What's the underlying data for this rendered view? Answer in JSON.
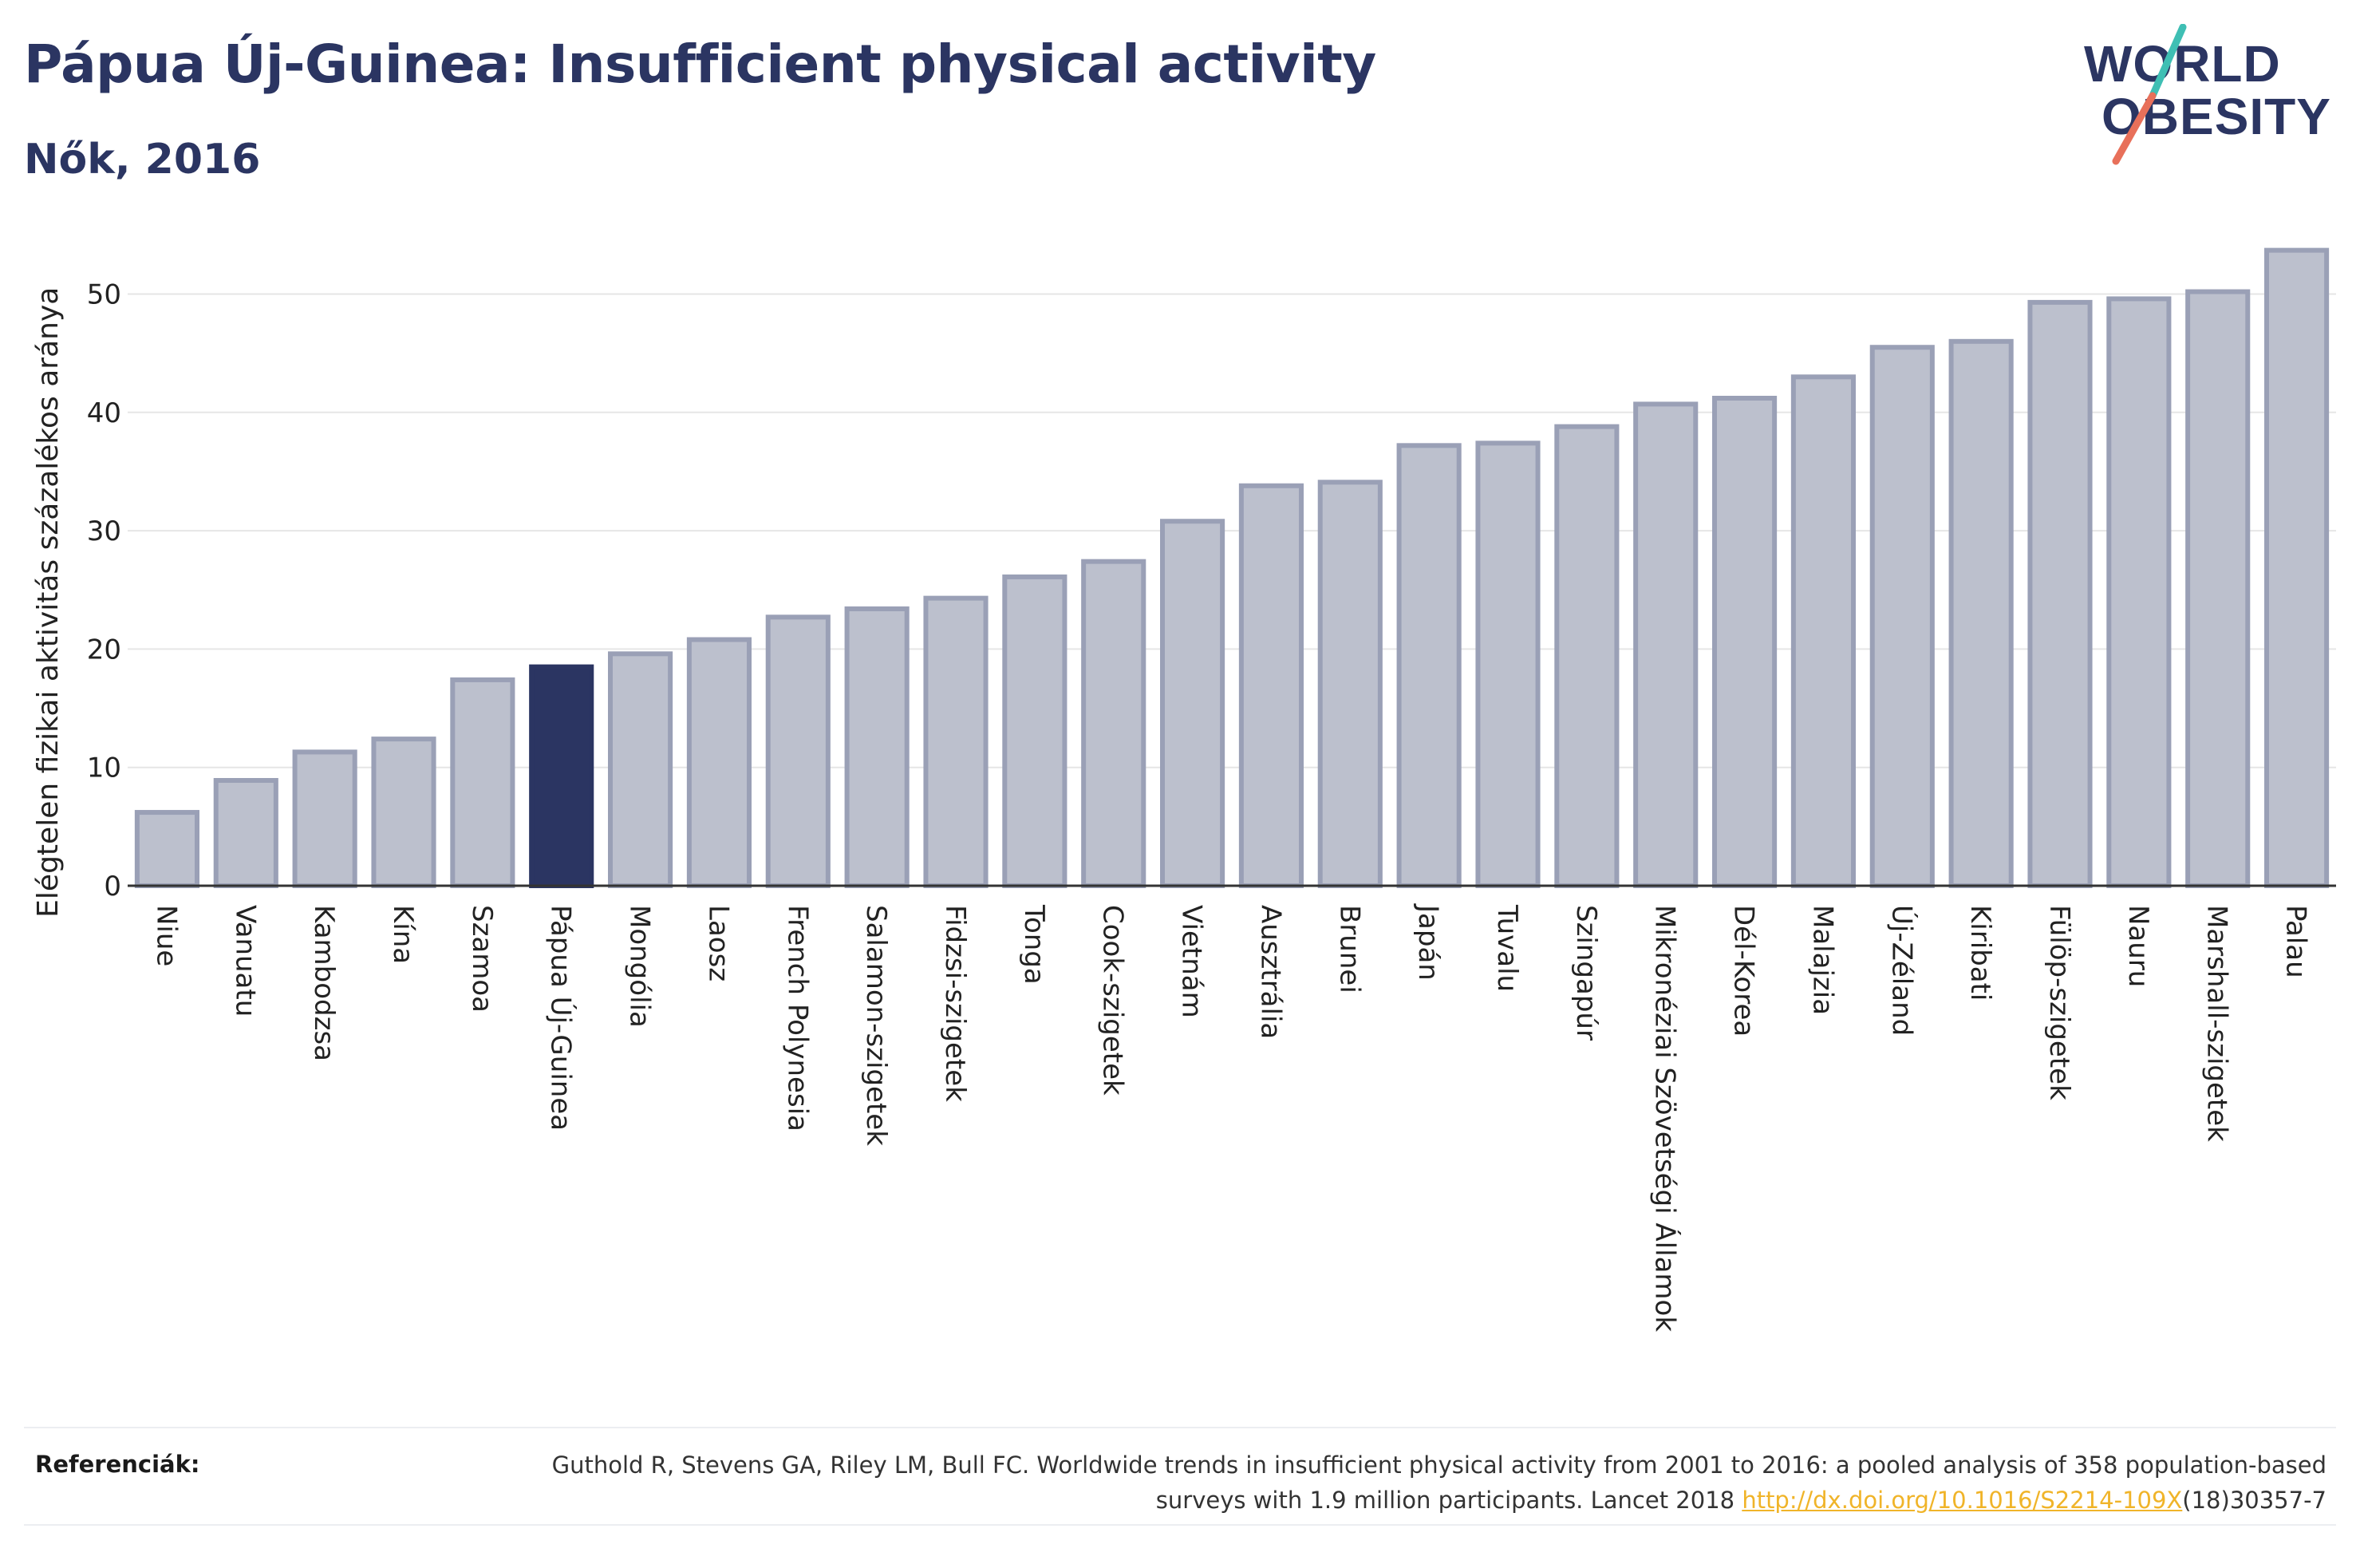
{
  "header": {
    "title": "Pápua Új-Guinea: Insufficient physical activity",
    "subtitle": "Nők, 2016"
  },
  "logo": {
    "line1": "WORLD",
    "line2": "OBESITY",
    "colors": {
      "text": "#2b3562",
      "slash_top": "#3fbfb4",
      "slash_bottom": "#e8705a"
    }
  },
  "colors": {
    "highlight_bar": "#2b3562",
    "bar_fill": "#bcc0cd",
    "bar_stroke": "#9aa0b6",
    "grid": "#e6e6e6",
    "axis": "#333333"
  },
  "chart_data": {
    "type": "bar",
    "ylabel": "Elégtelen fizikai aktivitás százalékos aránya",
    "xlabel": "",
    "ylim": [
      0,
      56
    ],
    "yticks": [
      0,
      10,
      20,
      30,
      40,
      50
    ],
    "grid": true,
    "highlight": "Pápua Új-Guinea",
    "categories": [
      "Niue",
      "Vanuatu",
      "Kambodzsa",
      "Kína",
      "Szamoa",
      "Pápua Új-Guinea",
      "Mongólia",
      "Laosz",
      "French Polynesia",
      "Salamon-szigetek",
      "Fidzsi-szigetek",
      "Tonga",
      "Cook-szigetek",
      "Vietnám",
      "Ausztrália",
      "Brunei",
      "Japán",
      "Tuvalu",
      "Szingapúr",
      "Mikronéziai Szövetségi Államok",
      "Dél-Korea",
      "Malajzia",
      "Új-Zéland",
      "Kiribati",
      "Fülöp-szigetek",
      "Nauru",
      "Marshall-szigetek",
      "Palau"
    ],
    "values": [
      6.2,
      8.9,
      11.3,
      12.4,
      17.4,
      18.5,
      19.6,
      20.8,
      22.7,
      23.4,
      24.3,
      26.1,
      27.4,
      30.8,
      33.8,
      34.1,
      37.2,
      37.4,
      38.8,
      40.7,
      41.2,
      43.0,
      45.5,
      46.0,
      49.3,
      49.6,
      50.2,
      53.7
    ]
  },
  "references": {
    "label": "Referenciák:",
    "text": "Guthold R, Stevens GA, Riley LM, Bull FC. Worldwide trends in insufficient physical activity from 2001 to 2016: a pooled analysis of 358 population-based surveys with 1.9 million participants. Lancet 2018 ",
    "link": "http://dx.doi.org/10.1016/S2214-109X",
    "suffix": "(18)30357-7"
  }
}
